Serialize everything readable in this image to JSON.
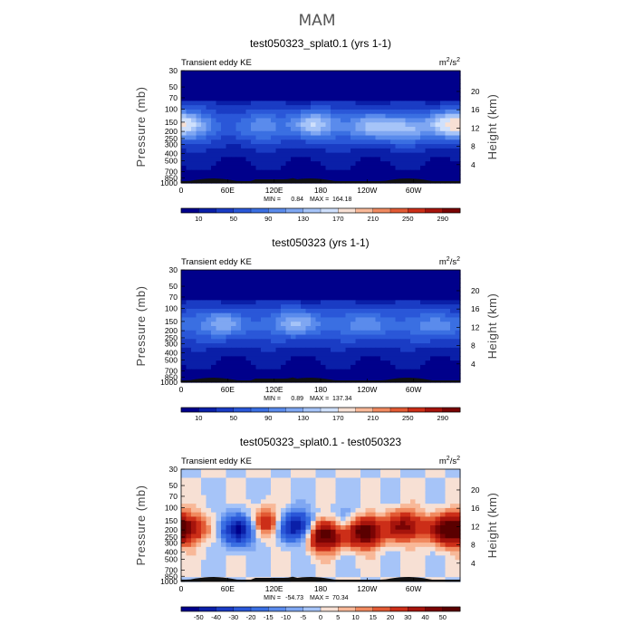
{
  "figure": {
    "title": "MAM"
  },
  "chart_data": [
    {
      "type": "heatmap",
      "title": "test050323_splat0.1 (yrs 1-1)",
      "left_label": "Transient eddy KE",
      "units": "m2/s2",
      "units_main": "m",
      "units_sup1": "2",
      "units_slash": "/s",
      "units_sup2": "2",
      "xlabel": "",
      "ylabel": "Pressure (mb)",
      "ylabel_right": "Height (km)",
      "x_ticks": [
        "0",
        "60E",
        "120E",
        "180",
        "120W",
        "60W"
      ],
      "x_tick_values": [
        0,
        60,
        120,
        180,
        240,
        300
      ],
      "xlim": [
        0,
        360
      ],
      "y_ticks": [
        "30",
        "50",
        "70",
        "100",
        "150",
        "200",
        "250",
        "300",
        "400",
        "500",
        "700",
        "850",
        "1000"
      ],
      "y_tick_values": [
        30,
        50,
        70,
        100,
        150,
        200,
        250,
        300,
        400,
        500,
        700,
        850,
        1000
      ],
      "ylim": [
        1000,
        30
      ],
      "height_ticks": [
        "4",
        "8",
        "12",
        "16",
        "20"
      ],
      "height_tick_values": [
        4,
        8,
        12,
        16,
        20
      ],
      "stats_min_label": "MIN =",
      "stats_min": "0.84",
      "stats_max_label": "MAX =",
      "stats_max": "164.18",
      "min": 0.84,
      "max": 164.18,
      "colorbar_labels": [
        "10",
        "50",
        "90",
        "130",
        "170",
        "210",
        "250",
        "290"
      ],
      "colorbar_levels": [
        10,
        30,
        50,
        70,
        90,
        110,
        130,
        150,
        170,
        190,
        210,
        230,
        250,
        270,
        290
      ],
      "colormap": [
        "#00008b",
        "#0a1fa8",
        "#1a3cc4",
        "#2a57d8",
        "#3a6fe2",
        "#5a8bec",
        "#7fa7f2",
        "#a6c4f8",
        "#cfe0fc",
        "#f7e0d4",
        "#f8b898",
        "#f08a60",
        "#e25a34",
        "#cc2e18",
        "#a6140c",
        "#7a0404"
      ],
      "jets": [
        {
          "lon": 15,
          "lev": 165,
          "peak": 110
        },
        {
          "lon": 100,
          "lev": 170,
          "peak": 95
        },
        {
          "lon": 170,
          "lev": 160,
          "peak": 150
        },
        {
          "lon": 245,
          "lev": 170,
          "peak": 140
        },
        {
          "lon": 290,
          "lev": 190,
          "peak": 120
        },
        {
          "lon": 345,
          "lev": 160,
          "peak": 164
        }
      ]
    },
    {
      "type": "heatmap",
      "title": "test050323 (yrs 1-1)",
      "left_label": "Transient eddy KE",
      "units": "m2/s2",
      "units_main": "m",
      "units_sup1": "2",
      "units_slash": "/s",
      "units_sup2": "2",
      "xlabel": "",
      "ylabel": "Pressure (mb)",
      "ylabel_right": "Height (km)",
      "x_ticks": [
        "0",
        "60E",
        "120E",
        "180",
        "120W",
        "60W"
      ],
      "x_tick_values": [
        0,
        60,
        120,
        180,
        240,
        300
      ],
      "xlim": [
        0,
        360
      ],
      "y_ticks": [
        "30",
        "50",
        "70",
        "100",
        "150",
        "200",
        "250",
        "300",
        "400",
        "500",
        "700",
        "850",
        "1000"
      ],
      "y_tick_values": [
        30,
        50,
        70,
        100,
        150,
        200,
        250,
        300,
        400,
        500,
        700,
        850,
        1000
      ],
      "ylim": [
        1000,
        30
      ],
      "height_ticks": [
        "4",
        "8",
        "12",
        "16",
        "20"
      ],
      "height_tick_values": [
        4,
        8,
        12,
        16,
        20
      ],
      "stats_min_label": "MIN =",
      "stats_min": "0.89",
      "stats_max_label": "MAX =",
      "stats_max": "137.34",
      "min": 0.89,
      "max": 137.34,
      "colorbar_labels": [
        "10",
        "50",
        "90",
        "130",
        "170",
        "210",
        "250",
        "290"
      ],
      "colorbar_levels": [
        10,
        30,
        50,
        70,
        90,
        110,
        130,
        150,
        170,
        190,
        210,
        230,
        250,
        270,
        290
      ],
      "colormap": [
        "#00008b",
        "#0a1fa8",
        "#1a3cc4",
        "#2a57d8",
        "#3a6fe2",
        "#5a8bec",
        "#7fa7f2",
        "#a6c4f8",
        "#cfe0fc",
        "#f7e0d4",
        "#f8b898",
        "#f08a60",
        "#e25a34",
        "#cc2e18",
        "#a6140c",
        "#7a0404"
      ],
      "jets": [
        {
          "lon": 55,
          "lev": 160,
          "peak": 125
        },
        {
          "lon": 150,
          "lev": 155,
          "peak": 137
        },
        {
          "lon": 240,
          "lev": 165,
          "peak": 110
        },
        {
          "lon": 330,
          "lev": 170,
          "peak": 105
        }
      ]
    },
    {
      "type": "heatmap",
      "title": "test050323_splat0.1 - test050323",
      "left_label": "Transient eddy KE",
      "units": "m2/s2",
      "units_main": "m",
      "units_sup1": "2",
      "units_slash": "/s",
      "units_sup2": "2",
      "xlabel": "",
      "ylabel": "Pressure (mb)",
      "ylabel_right": "Height (km)",
      "x_ticks": [
        "0",
        "60E",
        "120E",
        "180",
        "120W",
        "60W"
      ],
      "x_tick_values": [
        0,
        60,
        120,
        180,
        240,
        300
      ],
      "xlim": [
        0,
        360
      ],
      "y_ticks": [
        "30",
        "50",
        "70",
        "100",
        "150",
        "200",
        "250",
        "300",
        "400",
        "500",
        "700",
        "850",
        "1000"
      ],
      "y_tick_values": [
        30,
        50,
        70,
        100,
        150,
        200,
        250,
        300,
        400,
        500,
        700,
        850,
        1000
      ],
      "ylim": [
        1000,
        30
      ],
      "height_ticks": [
        "4",
        "8",
        "12",
        "16",
        "20"
      ],
      "height_tick_values": [
        4,
        8,
        12,
        16,
        20
      ],
      "stats_min_label": "MIN =",
      "stats_min": "-54.73",
      "stats_max_label": "MAX =",
      "stats_max": "70.34",
      "min": -54.73,
      "max": 70.34,
      "colorbar_labels": [
        "-50",
        "-40",
        "-30",
        "-20",
        "-15",
        "-10",
        "-5",
        "0",
        "5",
        "10",
        "15",
        "20",
        "30",
        "40",
        "50"
      ],
      "colorbar_levels": [
        -50,
        -40,
        -30,
        -20,
        -15,
        -10,
        -5,
        0,
        5,
        10,
        15,
        20,
        30,
        40,
        50
      ],
      "colormap": [
        "#00008b",
        "#0a1fa8",
        "#1a3cc4",
        "#2a57d8",
        "#3a6fe2",
        "#5a8bec",
        "#7fa7f2",
        "#a6c4f8",
        "#f7e0d4",
        "#f8b898",
        "#f08a60",
        "#e25a34",
        "#cc2e18",
        "#a6140c",
        "#7a0404",
        "#5a0000"
      ],
      "anomalies": [
        {
          "lon": 10,
          "lev": 190,
          "amp": 35
        },
        {
          "lon": 75,
          "lev": 200,
          "amp": -50
        },
        {
          "lon": 110,
          "lev": 160,
          "amp": 30
        },
        {
          "lon": 150,
          "lev": 180,
          "amp": -55
        },
        {
          "lon": 185,
          "lev": 230,
          "amp": 65
        },
        {
          "lon": 215,
          "lev": 170,
          "amp": -25
        },
        {
          "lon": 235,
          "lev": 210,
          "amp": 70
        },
        {
          "lon": 290,
          "lev": 180,
          "amp": 45
        },
        {
          "lon": 345,
          "lev": 200,
          "amp": 55
        }
      ]
    }
  ]
}
